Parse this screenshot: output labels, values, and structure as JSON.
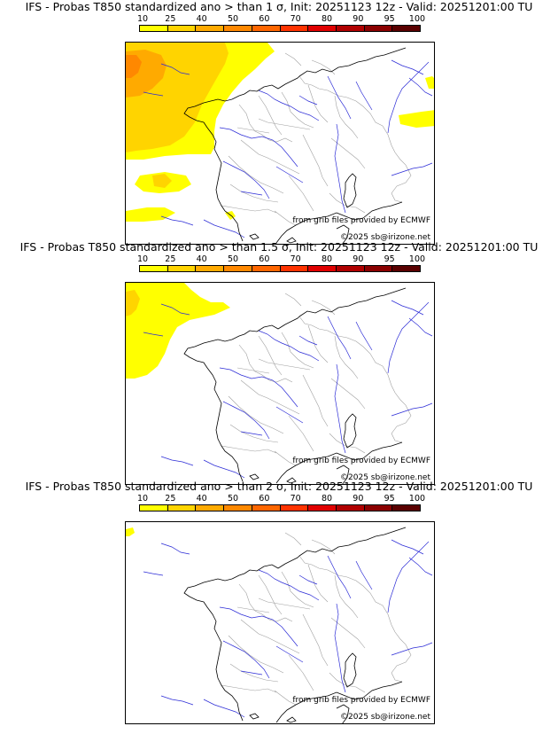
{
  "colorbar": {
    "labels": [
      "10",
      "25",
      "40",
      "50",
      "60",
      "70",
      "80",
      "90",
      "95",
      "100"
    ],
    "colors": [
      "#ffff00",
      "#ffd400",
      "#ffaa00",
      "#ff8800",
      "#ff6600",
      "#ff3300",
      "#e00000",
      "#b00000",
      "#8b0000",
      "#5a0000"
    ]
  },
  "credits": {
    "source": "from grib files provided by ECMWF",
    "copyright": "©2025 sb@irizone.net"
  },
  "panels": [
    {
      "title": "IFS - Probas T850  standardized ano > than 1 σ, Init: 20251123 12z - Valid: 20251201:00 TU",
      "threshold": "1 σ",
      "shading": "wide"
    },
    {
      "title": "IFS - Probas T850  standardized ano > than 1.5 σ, Init: 20251123 12z - Valid: 20251201:00 TU",
      "threshold": "1.5 σ",
      "shading": "medium"
    },
    {
      "title": "IFS - Probas T850  standardized ano > than 2 σ, Init: 20251123 12z - Valid: 20251201:00 TU",
      "threshold": "2 σ",
      "shading": "minimal"
    }
  ],
  "map_colors": {
    "coast": "#000000",
    "borders": "#a0a0a0",
    "rivers": "#2b2bd6"
  }
}
